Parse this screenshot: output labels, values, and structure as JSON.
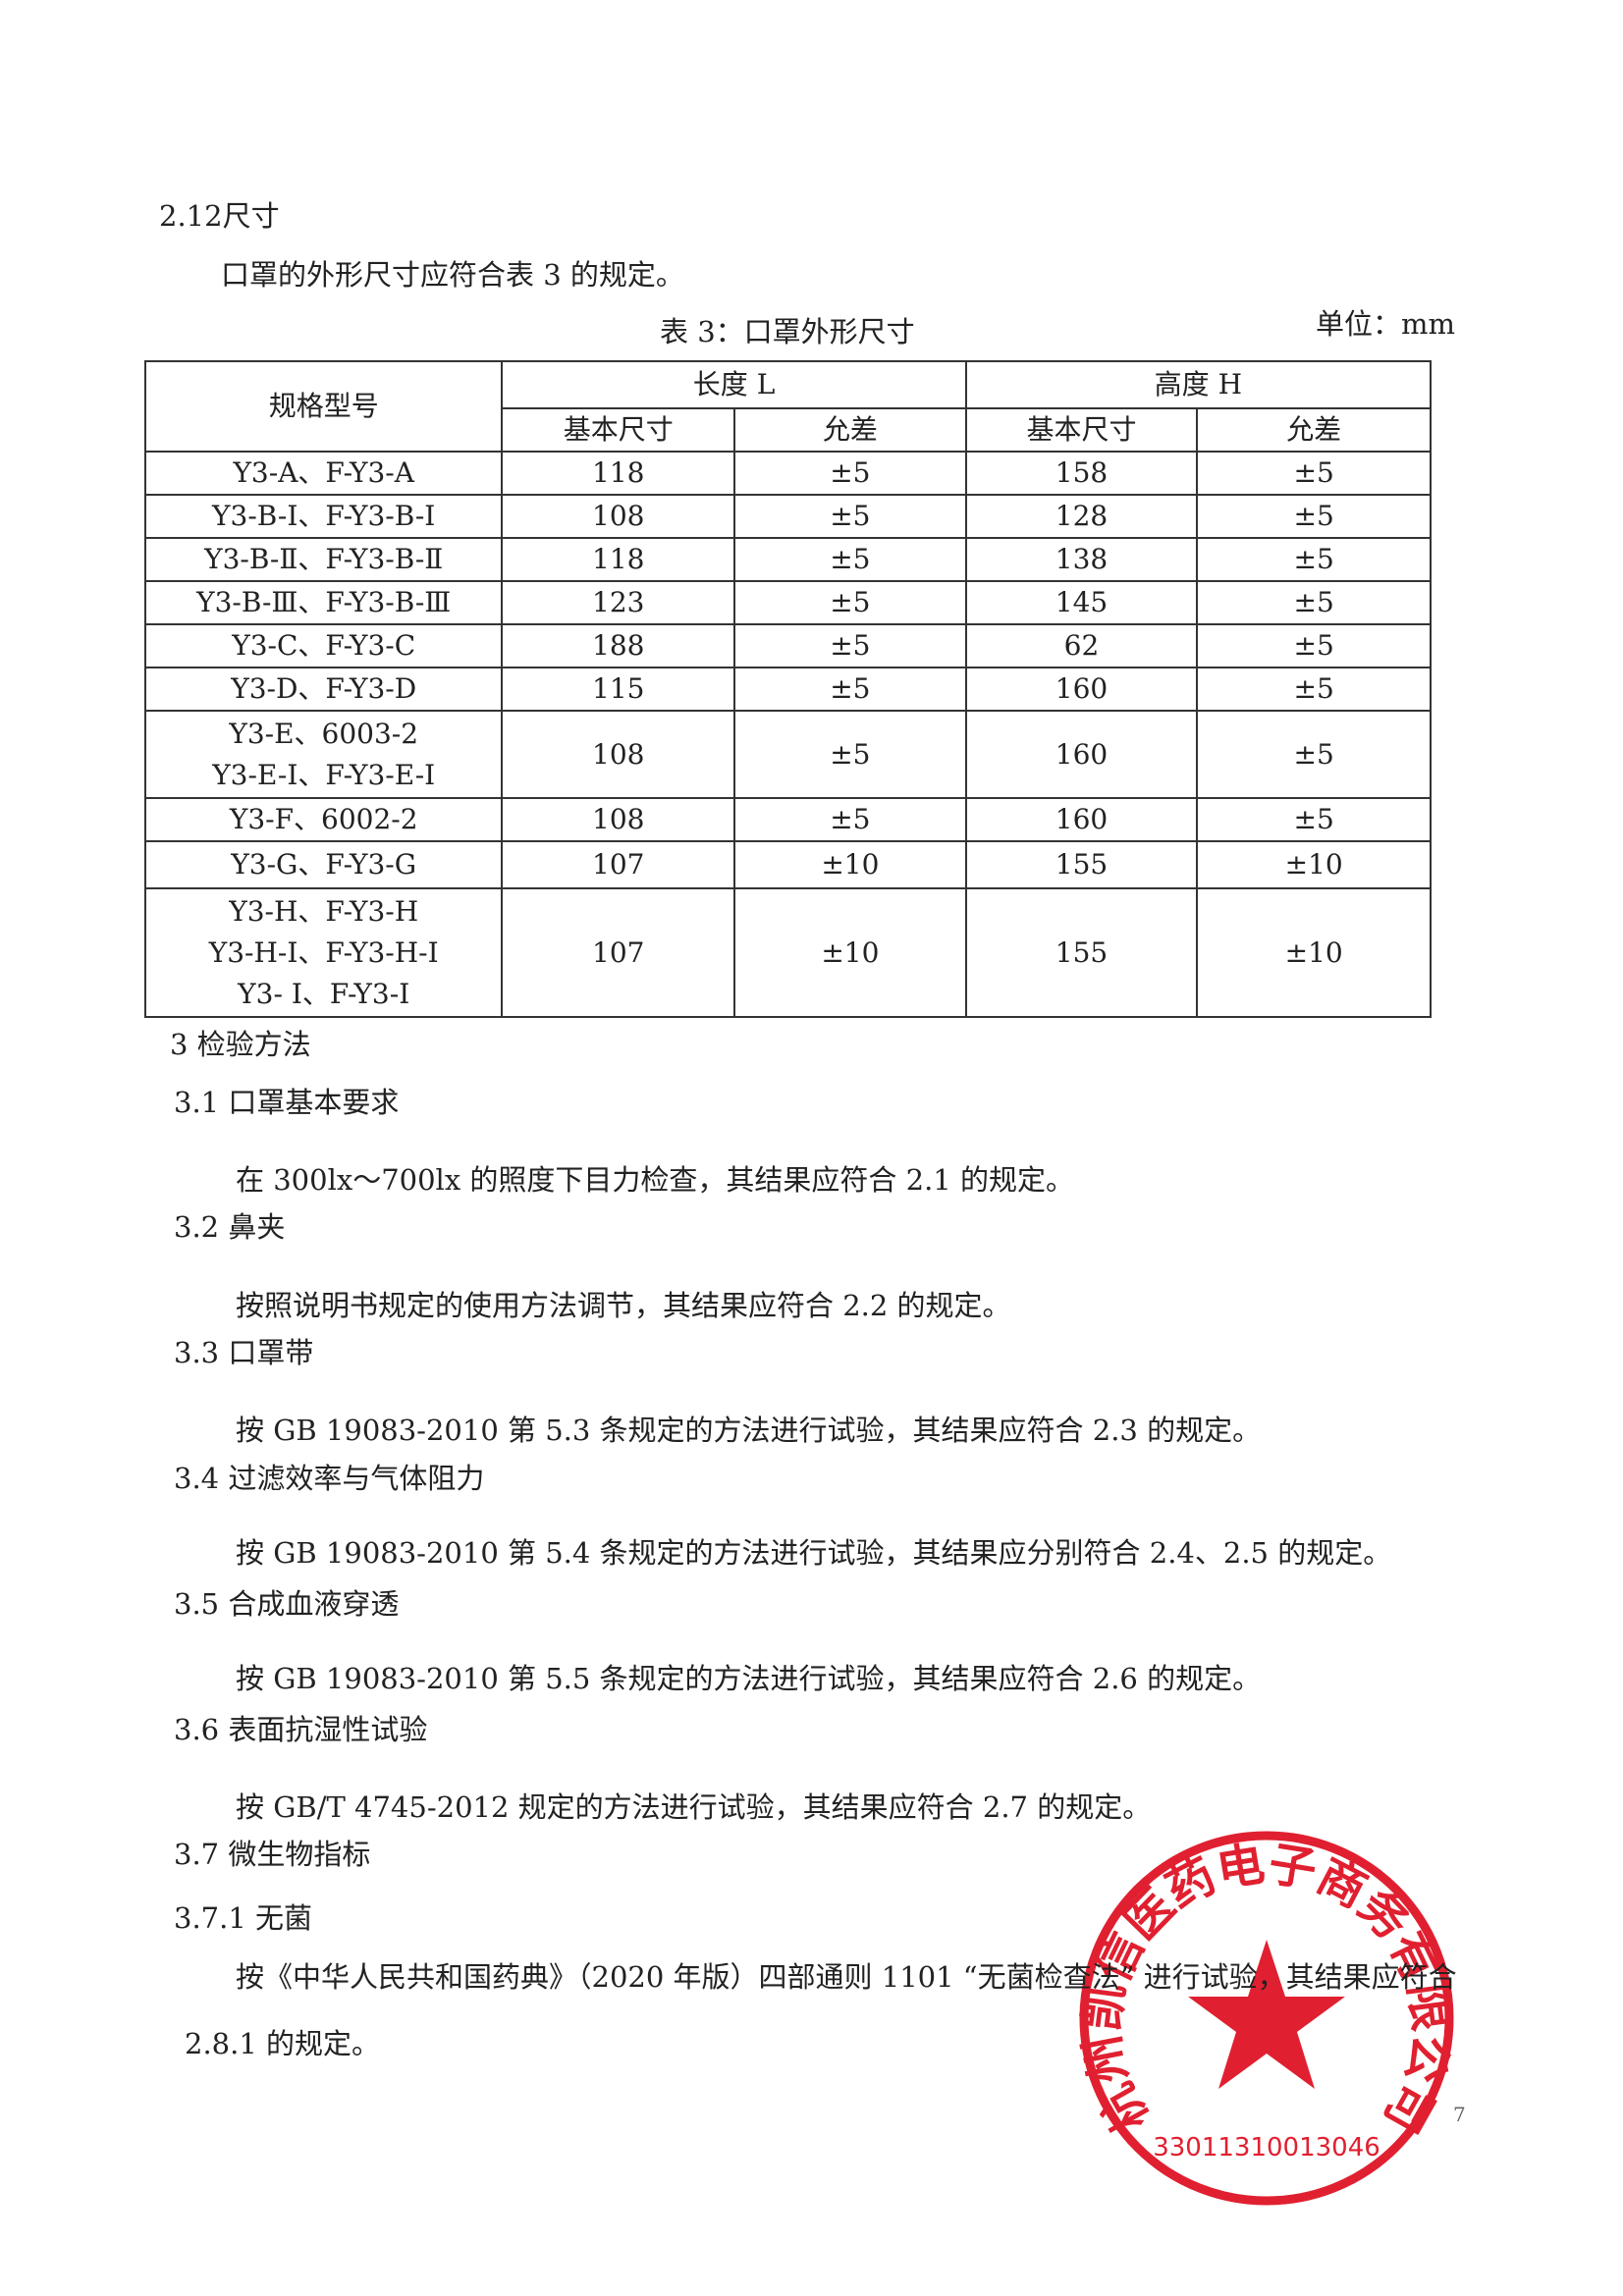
{
  "section_2_12": {
    "heading": "2.12尺寸",
    "text": "口罩的外形尺寸应符合表 3 的规定。"
  },
  "table": {
    "caption": "表 3：口罩外形尺寸",
    "unit": "单位：mm",
    "header": {
      "model": "规格型号",
      "length": "长度 L",
      "height": "高度 H",
      "basic_1": "基本尺寸",
      "tolerance_1": "允差",
      "basic_2": "基本尺寸",
      "tolerance_2": "允差"
    },
    "rows": [
      {
        "model": [
          "Y3-A、F-Y3-A"
        ],
        "length": "118",
        "length_tol": "±5",
        "height": "158",
        "height_tol": "±5"
      },
      {
        "model": [
          "Y3-B-Ⅰ、F-Y3-B-Ⅰ"
        ],
        "length": "108",
        "length_tol": "±5",
        "height": "128",
        "height_tol": "±5"
      },
      {
        "model": [
          "Y3-B-Ⅱ、F-Y3-B-Ⅱ"
        ],
        "length": "118",
        "length_tol": "±5",
        "height": "138",
        "height_tol": "±5"
      },
      {
        "model": [
          "Y3-B-Ⅲ、F-Y3-B-Ⅲ"
        ],
        "length": "123",
        "length_tol": "±5",
        "height": "145",
        "height_tol": "±5"
      },
      {
        "model": [
          "Y3-C、F-Y3-C"
        ],
        "length": "188",
        "length_tol": "±5",
        "height": "62",
        "height_tol": "±5"
      },
      {
        "model": [
          "Y3-D、F-Y3-D"
        ],
        "length": "115",
        "length_tol": "±5",
        "height": "160",
        "height_tol": "±5"
      },
      {
        "model": [
          "Y3-E、6003-2",
          "Y3-E-Ⅰ、F-Y3-E-Ⅰ"
        ],
        "length": "108",
        "length_tol": "±5",
        "height": "160",
        "height_tol": "±5"
      },
      {
        "model": [
          "Y3-F、6002-2"
        ],
        "length": "108",
        "length_tol": "±5",
        "height": "160",
        "height_tol": "±5"
      },
      {
        "model": [
          "Y3-G、F-Y3-G"
        ],
        "length": "107",
        "length_tol": "±10",
        "height": "155",
        "height_tol": "±10"
      },
      {
        "model": [
          "Y3-H、F-Y3-H",
          "Y3-H-Ⅰ、F-Y3-H-Ⅰ",
          "Y3- Ⅰ、F-Y3-Ⅰ"
        ],
        "length": "107",
        "length_tol": "±10",
        "height": "155",
        "height_tol": "±10"
      }
    ]
  },
  "sections": [
    {
      "heading": "3 检验方法"
    },
    {
      "heading": "3.1 口罩基本要求",
      "text": "在 300lx～700lx 的照度下目力检查，其结果应符合 2.1 的规定。"
    },
    {
      "heading": "3.2 鼻夹",
      "text": "按照说明书规定的使用方法调节，其结果应符合 2.2 的规定。"
    },
    {
      "heading": "3.3 口罩带",
      "text": "按 GB 19083-2010 第 5.3 条规定的方法进行试验，其结果应符合 2.3 的规定。"
    },
    {
      "heading": "3.4 过滤效率与气体阻力",
      "text": "按 GB 19083-2010 第 5.4 条规定的方法进行试验，其结果应分别符合 2.4、2.5 的规定。"
    },
    {
      "heading": "3.5 合成血液穿透",
      "text": "按 GB 19083-2010 第 5.5 条规定的方法进行试验，其结果应符合 2.6 的规定。"
    },
    {
      "heading": "3.6 表面抗湿性试验",
      "text": "按 GB/T 4745-2012 规定的方法进行试验，其结果应符合 2.7 的规定。"
    },
    {
      "heading": "3.7 微生物指标"
    },
    {
      "heading": "3.7.1 无菌",
      "text": "按《中华人民共和国药典》（2020 年版）四部通则 1101 “无菌检查法” 进行试验，其结果应符合 2.8.1 的规定。"
    }
  ],
  "stamp": {
    "name": "杭州凯信医药电子商务有限公司",
    "code": "33011310013046"
  },
  "page_number": "7"
}
